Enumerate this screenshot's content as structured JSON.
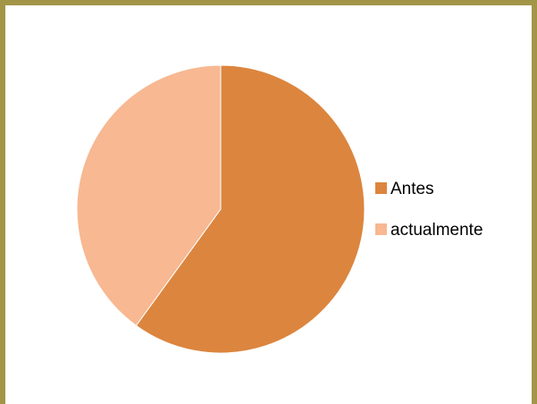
{
  "chart_data": {
    "type": "pie",
    "categories": [
      "Antes",
      "actualmente"
    ],
    "values": [
      60,
      40
    ],
    "colors": [
      "#dc853e",
      "#f7b892"
    ],
    "title": "",
    "legend_position": "right",
    "start_angle_deg": 0,
    "direction": "clockwise"
  }
}
